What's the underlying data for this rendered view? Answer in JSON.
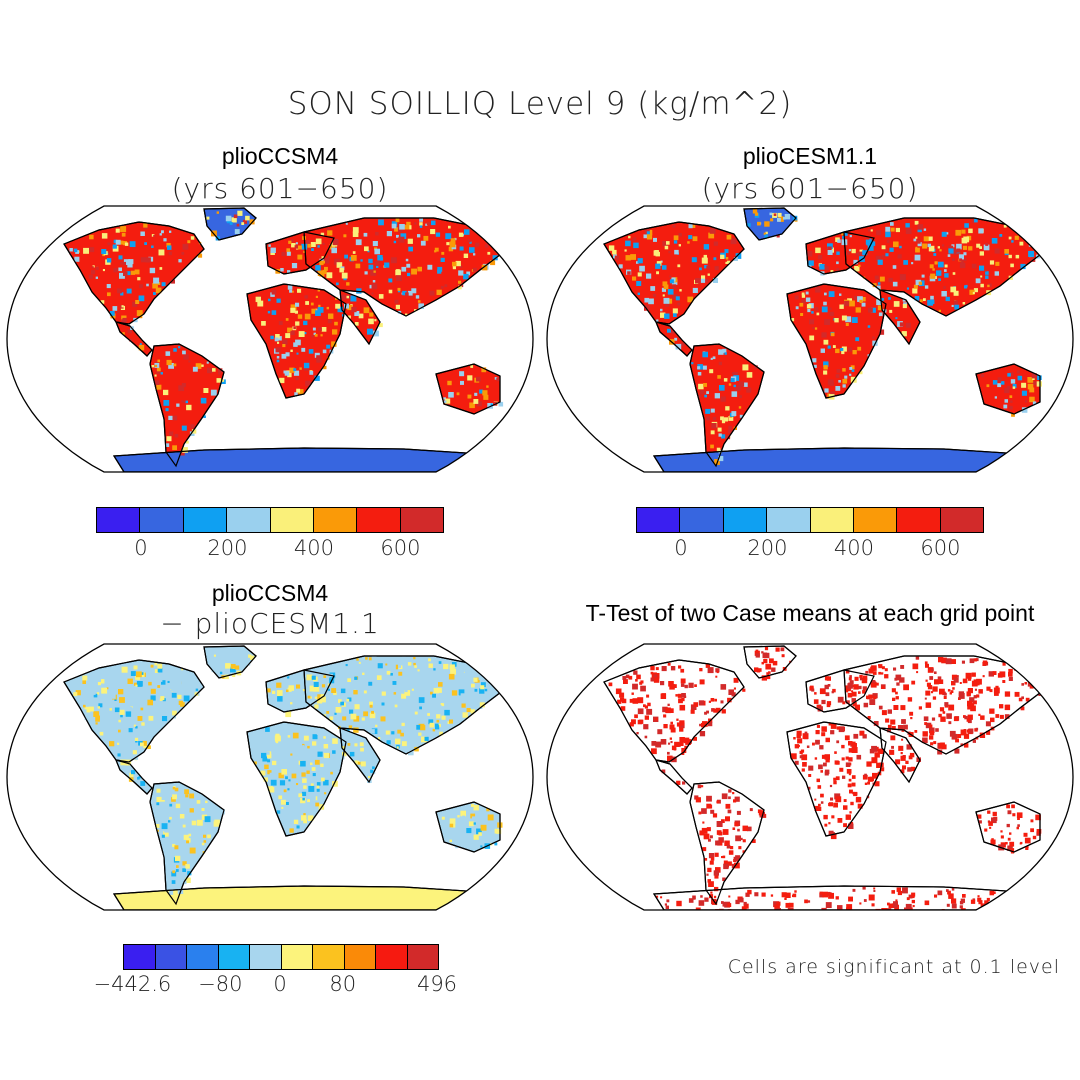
{
  "title": "SON SOILLIQ Level 9 (kg/m^2)",
  "panels": [
    {
      "id": "p1",
      "title": "plioCCSM4",
      "subtitle": "(yrs 601−650)",
      "icon": "world-map-robinson"
    },
    {
      "id": "p2",
      "title": "plioCESM1.1",
      "subtitle": "(yrs 601−650)",
      "icon": "world-map-robinson"
    },
    {
      "id": "p3",
      "title": "plioCCSM4",
      "subtitle": "− plioCESM1.1",
      "icon": "world-map-robinson"
    },
    {
      "id": "p4",
      "title": "T-Test of two Case means at each grid point",
      "subtitle": "",
      "icon": "world-map-robinson"
    }
  ],
  "colorbars": {
    "absolute": {
      "colors": [
        "#3a1ff0",
        "#3766e0",
        "#0fa0f2",
        "#9ad0ee",
        "#faf07a",
        "#fa9a08",
        "#f41d0f",
        "#d22a2a"
      ],
      "labels": [
        "0",
        "200",
        "400",
        "600"
      ]
    },
    "difference": {
      "colors": [
        "#3a1ff0",
        "#3a52e4",
        "#2a80ee",
        "#18b2f2",
        "#a8d6ee",
        "#fcf37c",
        "#fbc21f",
        "#fa8a08",
        "#f61a10",
        "#d22a2a"
      ],
      "labels": [
        "−442.6",
        "−80",
        "0",
        "80",
        "496"
      ]
    }
  },
  "significance_note": "Cells are significant at 0.1 level"
}
